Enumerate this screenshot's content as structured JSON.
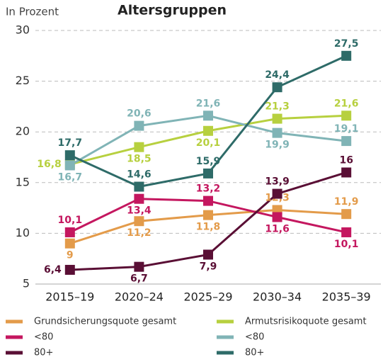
{
  "chart_data": {
    "type": "line",
    "title": "Altersgruppen",
    "y_label": "In Prozent",
    "categories": [
      "2015–19",
      "2020–24",
      "2025–29",
      "2030–34",
      "2035–39"
    ],
    "ylim": [
      5,
      30
    ],
    "yticks": [
      5,
      10,
      15,
      20,
      25,
      30
    ],
    "grid": true,
    "series": [
      {
        "name": "Grundsicherungsquote gesamt",
        "color": "#e39b4a",
        "values": [
          9,
          11.2,
          11.8,
          12.3,
          11.9
        ],
        "value_labels": [
          "9",
          "11,2",
          "11,8",
          "12,3",
          "11,9"
        ]
      },
      {
        "name": "<80",
        "color": "#c4175f",
        "values": [
          10.1,
          13.4,
          13.2,
          11.6,
          10.1
        ],
        "value_labels": [
          "10,1",
          "13,4",
          "13,2",
          "11,6",
          "10,1"
        ]
      },
      {
        "name": "80+",
        "color": "#5a0f35",
        "values": [
          6.4,
          6.7,
          7.9,
          13.9,
          16
        ],
        "value_labels": [
          "6,4",
          "6,7",
          "7,9",
          "13,9",
          "16"
        ]
      },
      {
        "name": "Armutsrisikoquote gesamt",
        "color": "#b7d03f",
        "values": [
          16.8,
          18.5,
          20.1,
          21.3,
          21.6
        ],
        "value_labels": [
          "16,8",
          "18,5",
          "20,1",
          "21,3",
          "21,6"
        ]
      },
      {
        "name": "<80",
        "color": "#80b4b6",
        "values": [
          16.7,
          20.6,
          21.6,
          19.9,
          19.1
        ],
        "value_labels": [
          "16,7",
          "20,6",
          "21,6",
          "19,9",
          "19,1"
        ]
      },
      {
        "name": "80+",
        "color": "#2e6b68",
        "values": [
          17.7,
          14.6,
          15.9,
          24.4,
          27.5
        ],
        "value_labels": [
          "17,7",
          "14,6",
          "15,9",
          "24,4",
          "27,5"
        ]
      }
    ]
  }
}
